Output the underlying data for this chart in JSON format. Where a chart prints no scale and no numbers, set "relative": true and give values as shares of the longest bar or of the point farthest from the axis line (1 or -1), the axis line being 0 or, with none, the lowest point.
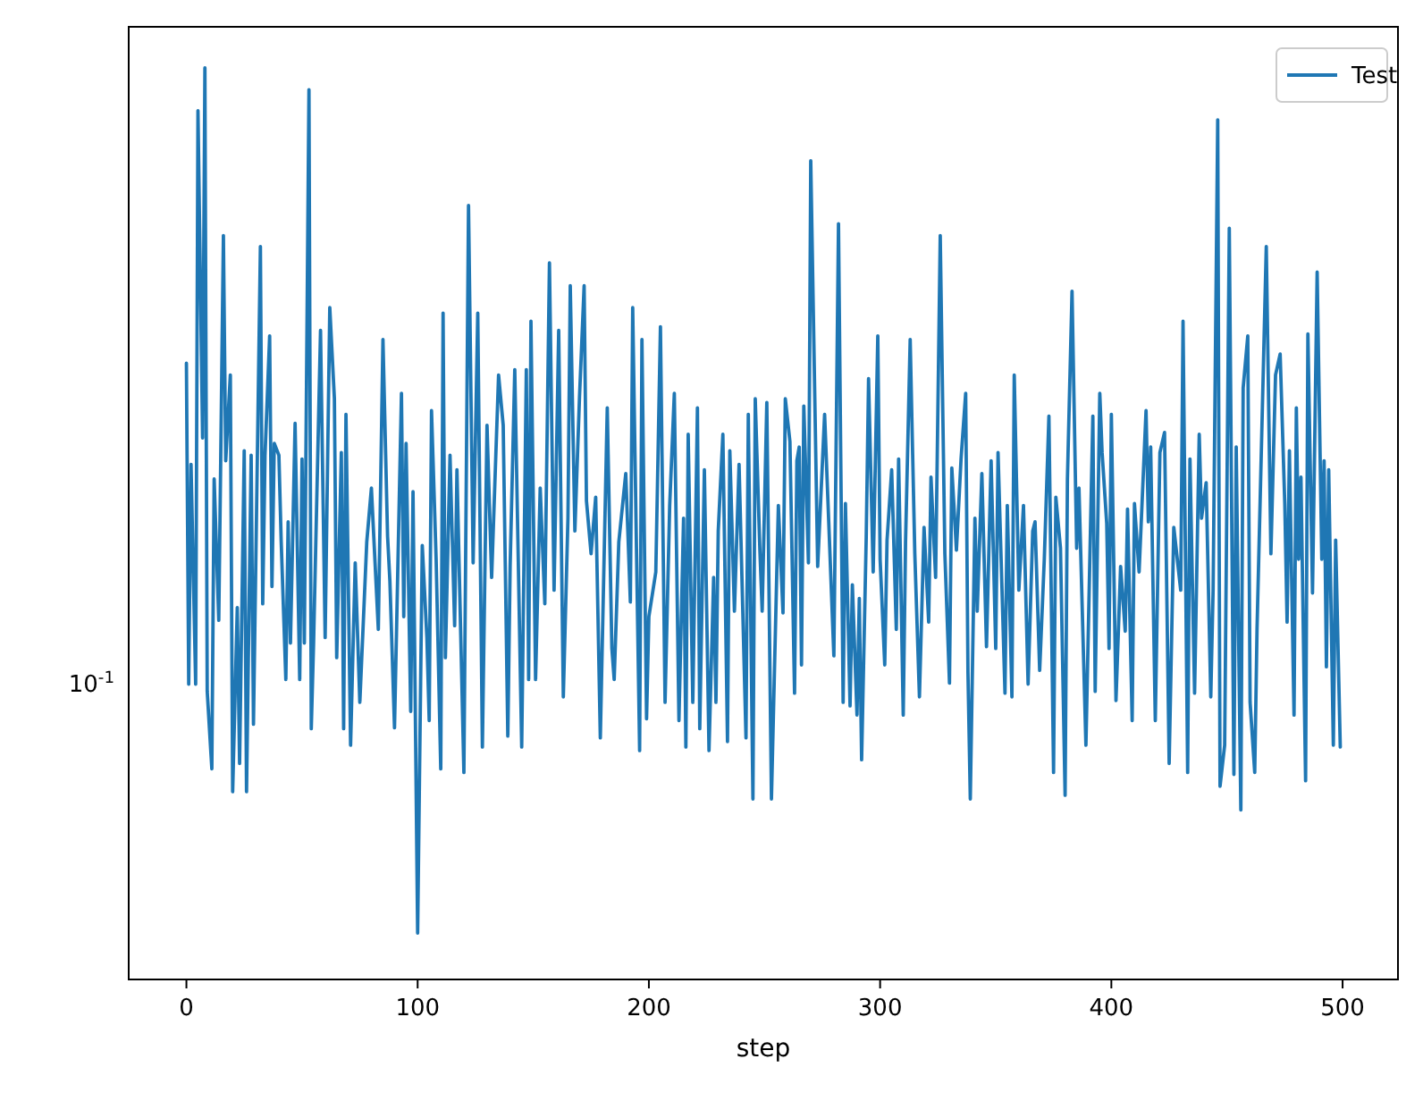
{
  "chart_data": {
    "type": "line",
    "xlabel": "step",
    "legend": "top right",
    "relative": true,
    "annotations": [
      "10$^{-1}$"
    ],
    "xlim": [
      -24.95,
      523.95
    ],
    "xticks": [
      0,
      100,
      200,
      300,
      400,
      500
    ],
    "series": [
      {
        "name": "Test",
        "color": "#1f77b4",
        "x": [
          0,
          1,
          2,
          4,
          5,
          7,
          8,
          9,
          11,
          12,
          14,
          16,
          17,
          19,
          20,
          22,
          23,
          25,
          26,
          28,
          29,
          32,
          33,
          34,
          36,
          37,
          38,
          40,
          41,
          43,
          44,
          45,
          47,
          49,
          50,
          51,
          53,
          54,
          55,
          58,
          60,
          62,
          64,
          65,
          67,
          68,
          69,
          71,
          73,
          75,
          78,
          80,
          83,
          85,
          87,
          88,
          90,
          93,
          94,
          95,
          97,
          98,
          100,
          102,
          104,
          105,
          106,
          108,
          110,
          111,
          112,
          114,
          116,
          117,
          120,
          122,
          124,
          126,
          128,
          130,
          132,
          135,
          137,
          139,
          140,
          142,
          145,
          147,
          148,
          149,
          151,
          153,
          155,
          157,
          159,
          161,
          163,
          165,
          166,
          168,
          170,
          172,
          173,
          175,
          177,
          179,
          182,
          184,
          185,
          187,
          190,
          192,
          193,
          196,
          197,
          199,
          200,
          203,
          205,
          207,
          209,
          211,
          213,
          215,
          216,
          217,
          219,
          221,
          222,
          224,
          226,
          228,
          229,
          230,
          232,
          234,
          235,
          237,
          239,
          242,
          243,
          245,
          246,
          248,
          249,
          251,
          253,
          256,
          258,
          259,
          261,
          263,
          264,
          265,
          266,
          267,
          269,
          270,
          273,
          276,
          280,
          282,
          284,
          285,
          287,
          288,
          290,
          291,
          292,
          294,
          295,
          297,
          299,
          300,
          302,
          303,
          305,
          307,
          308,
          310,
          311,
          313,
          315,
          317,
          319,
          321,
          322,
          324,
          326,
          328,
          330,
          331,
          333,
          335,
          337,
          338,
          339,
          341,
          342,
          344,
          346,
          348,
          350,
          351,
          354,
          355,
          357,
          358,
          360,
          362,
          364,
          366,
          367,
          369,
          371,
          373,
          375,
          376,
          378,
          380,
          381,
          383,
          385,
          386,
          389,
          392,
          393,
          395,
          396,
          398,
          399,
          400,
          402,
          404,
          406,
          407,
          409,
          410,
          412,
          415,
          416,
          417,
          419,
          421,
          423,
          425,
          427,
          430,
          431,
          433,
          434,
          436,
          438,
          439,
          441,
          443,
          444,
          446,
          447,
          449,
          451,
          453,
          454,
          456,
          457,
          459,
          460,
          462,
          463,
          467,
          469,
          471,
          473,
          475,
          476,
          477,
          479,
          480,
          481,
          482,
          484,
          485,
          487,
          489,
          491,
          492,
          493,
          494,
          496,
          497,
          499
        ],
        "values": [
          0.676,
          0.324,
          0.565,
          0.324,
          0.953,
          0.594,
          1,
          0.316,
          0.231,
          0.549,
          0.394,
          0.816,
          0.569,
          0.663,
          0.206,
          0.408,
          0.237,
          0.58,
          0.206,
          0.575,
          0.28,
          0.804,
          0.412,
          0.575,
          0.706,
          0.431,
          0.588,
          0.575,
          0.48,
          0.329,
          0.502,
          0.369,
          0.61,
          0.329,
          0.571,
          0.369,
          0.976,
          0.275,
          0.369,
          0.712,
          0.375,
          0.737,
          0.637,
          0.353,
          0.578,
          0.275,
          0.62,
          0.257,
          0.457,
          0.304,
          0.48,
          0.539,
          0.384,
          0.702,
          0.486,
          0.437,
          0.276,
          0.643,
          0.398,
          0.588,
          0.294,
          0.535,
          0.051,
          0.476,
          0.375,
          0.284,
          0.624,
          0.461,
          0.231,
          0.731,
          0.353,
          0.575,
          0.388,
          0.559,
          0.227,
          0.849,
          0.457,
          0.731,
          0.255,
          0.608,
          0.441,
          0.663,
          0.608,
          0.267,
          0.453,
          0.669,
          0.255,
          0.669,
          0.329,
          0.722,
          0.329,
          0.539,
          0.412,
          0.786,
          0.427,
          0.712,
          0.31,
          0.506,
          0.761,
          0.492,
          0.639,
          0.761,
          0.525,
          0.467,
          0.529,
          0.265,
          0.627,
          0.363,
          0.329,
          0.48,
          0.555,
          0.414,
          0.737,
          0.251,
          0.702,
          0.286,
          0.398,
          0.447,
          0.716,
          0.304,
          0.52,
          0.643,
          0.284,
          0.506,
          0.255,
          0.598,
          0.304,
          0.627,
          0.275,
          0.559,
          0.251,
          0.441,
          0.304,
          0.492,
          0.598,
          0.261,
          0.58,
          0.404,
          0.565,
          0.265,
          0.62,
          0.198,
          0.637,
          0.471,
          0.404,
          0.633,
          0.198,
          0.52,
          0.402,
          0.637,
          0.59,
          0.314,
          0.569,
          0.584,
          0.345,
          0.629,
          0.457,
          0.898,
          0.453,
          0.62,
          0.355,
          0.829,
          0.304,
          0.522,
          0.3,
          0.433,
          0.29,
          0.418,
          0.241,
          0.486,
          0.659,
          0.447,
          0.706,
          0.461,
          0.345,
          0.482,
          0.559,
          0.384,
          0.571,
          0.29,
          0.48,
          0.702,
          0.467,
          0.31,
          0.496,
          0.392,
          0.551,
          0.441,
          0.816,
          0.467,
          0.325,
          0.561,
          0.471,
          0.571,
          0.643,
          0.335,
          0.198,
          0.506,
          0.404,
          0.555,
          0.365,
          0.569,
          0.363,
          0.578,
          0.314,
          0.52,
          0.31,
          0.663,
          0.427,
          0.52,
          0.324,
          0.492,
          0.502,
          0.339,
          0.461,
          0.618,
          0.227,
          0.529,
          0.473,
          0.202,
          0.549,
          0.755,
          0.473,
          0.539,
          0.257,
          0.618,
          0.316,
          0.643,
          0.578,
          0.5,
          0.363,
          0.62,
          0.306,
          0.453,
          0.382,
          0.516,
          0.284,
          0.522,
          0.447,
          0.624,
          0.502,
          0.584,
          0.284,
          0.578,
          0.6,
          0.237,
          0.496,
          0.427,
          0.722,
          0.227,
          0.571,
          0.314,
          0.598,
          0.506,
          0.545,
          0.31,
          0.427,
          0.943,
          0.212,
          0.257,
          0.824,
          0.225,
          0.584,
          0.186,
          0.649,
          0.706,
          0.304,
          0.227,
          0.384,
          0.804,
          0.467,
          0.663,
          0.686,
          0.522,
          0.392,
          0.58,
          0.29,
          0.627,
          0.461,
          0.551,
          0.218,
          0.708,
          0.424,
          0.776,
          0.461,
          0.569,
          0.343,
          0.559,
          0.257,
          0.482,
          0.255
        ]
      }
    ]
  }
}
